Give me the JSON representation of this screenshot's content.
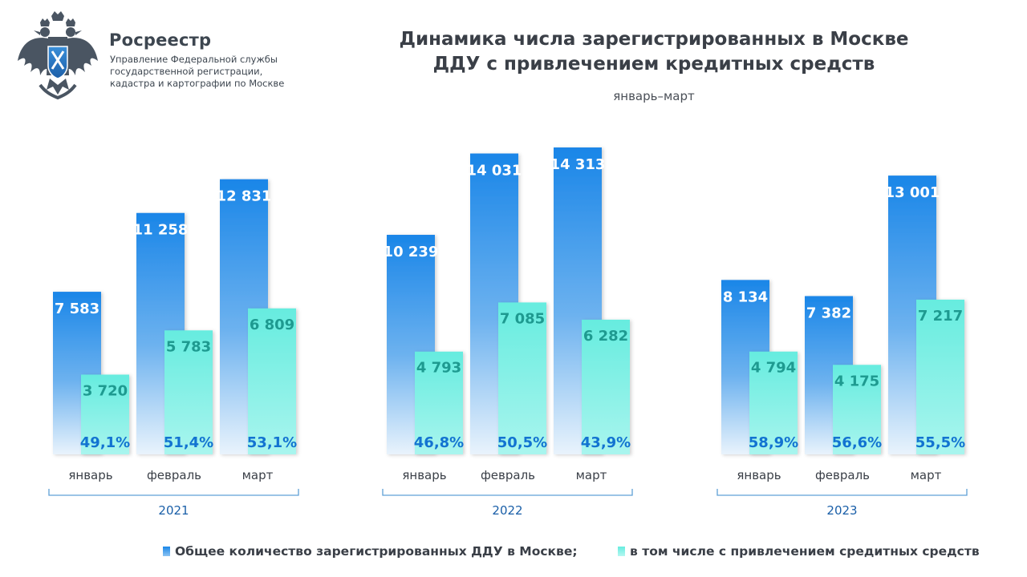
{
  "brand": {
    "name": "Росреестр",
    "subtitle_lines": [
      "Управление Федеральной службы",
      "государственной регистрации,",
      "кадастра и картографии по Москве"
    ]
  },
  "colors": {
    "total_series": "#1a86e8",
    "credit_series": "#66ecdf",
    "total_label": "#ffffff",
    "credit_value_label": "#1e9a90",
    "percent_label": "#1273d1",
    "group_bracket": "#5fa0d6",
    "year_label": "#1a5fa8"
  },
  "chart_data": {
    "type": "bar",
    "title_lines": [
      "Динамика числа зарегистрированных в Москве",
      "ДДУ с привлечением кредитных средств"
    ],
    "subtitle": "январь–март",
    "groups": [
      {
        "year": "2021",
        "categories": [
          "январь",
          "февраль",
          "март"
        ],
        "total": [
          7583,
          11258,
          12831
        ],
        "total_labels": [
          "7 583",
          "11 258",
          "12 831"
        ],
        "credit": [
          3720,
          5783,
          6809
        ],
        "credit_labels": [
          "3 720",
          "5 783",
          "6 809"
        ],
        "share_labels": [
          "49,1%",
          "51,4%",
          "53,1%"
        ]
      },
      {
        "year": "2022",
        "categories": [
          "январь",
          "февраль",
          "март"
        ],
        "total": [
          10239,
          14031,
          14313
        ],
        "total_labels": [
          "10 239",
          "14 031",
          "14 313"
        ],
        "credit": [
          4793,
          7085,
          6282
        ],
        "credit_labels": [
          "4 793",
          "7 085",
          "6 282"
        ],
        "share_labels": [
          "46,8%",
          "50,5%",
          "43,9%"
        ]
      },
      {
        "year": "2023",
        "categories": [
          "январь",
          "февраль",
          "март"
        ],
        "total": [
          8134,
          7382,
          13001
        ],
        "total_labels": [
          "8 134",
          "7 382",
          "13 001"
        ],
        "credit": [
          4794,
          4175,
          7217
        ],
        "credit_labels": [
          "4 794",
          "4 175",
          "7 217"
        ],
        "share_labels": [
          "58,9%",
          "56,6%",
          "55,5%"
        ]
      }
    ],
    "series": [
      {
        "name": "Общее количество зарегистрированных ДДУ в Москве;"
      },
      {
        "name": "в том числе с привлечением средитных средств"
      }
    ],
    "legend_position": "bottom",
    "grid": false
  }
}
